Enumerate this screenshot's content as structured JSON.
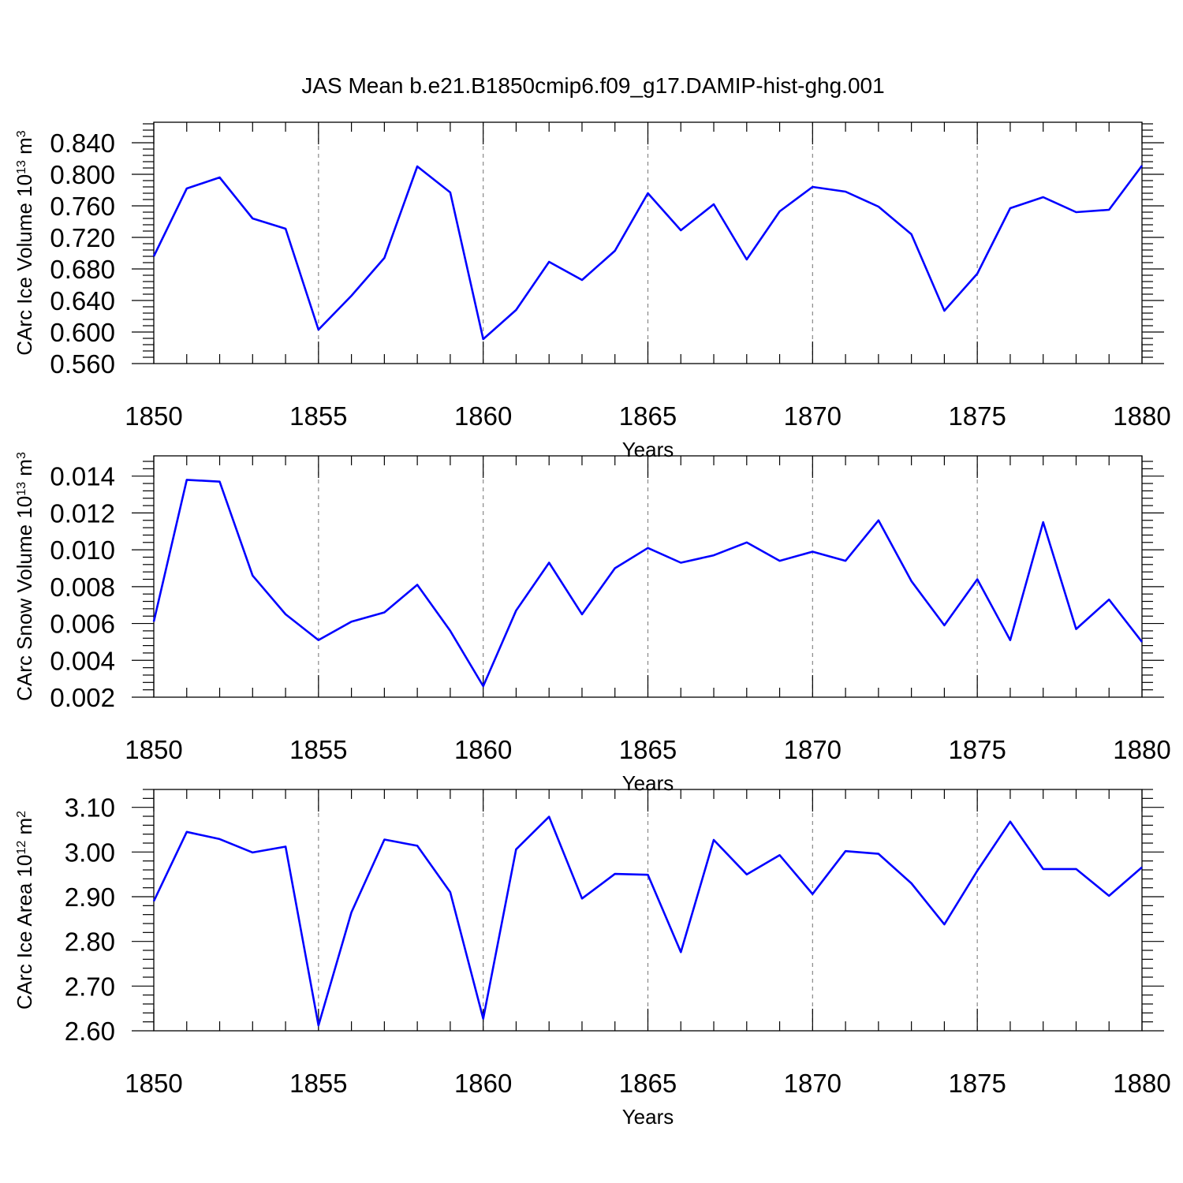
{
  "title": "JAS Mean b.e21.B1850cmip6.f09_g17.DAMIP-hist-ghg.001",
  "colors": {
    "line": "#0000ff",
    "grid": "#888888",
    "axis": "#000000"
  },
  "chart_data": [
    {
      "type": "line",
      "xlabel": "Years",
      "ylabel": "CArc Ice Volume 10",
      "ylabel_exp": "13",
      "ylabel_unit": " m",
      "ylabel_unit_exp": "3",
      "xlim": [
        1850,
        1880
      ],
      "ylim": [
        0.56,
        0.866
      ],
      "xticks": [
        "1850",
        "1855",
        "1860",
        "1865",
        "1870",
        "1875",
        "1880"
      ],
      "yticks": [
        "0.560",
        "0.600",
        "0.640",
        "0.680",
        "0.720",
        "0.760",
        "0.800",
        "0.840"
      ],
      "ytick_values": [
        0.56,
        0.6,
        0.64,
        0.68,
        0.72,
        0.76,
        0.8,
        0.84
      ],
      "grid_x": [
        1855,
        1860,
        1865,
        1870,
        1875
      ],
      "x": [
        1850,
        1851,
        1852,
        1853,
        1854,
        1855,
        1856,
        1857,
        1858,
        1859,
        1860,
        1861,
        1862,
        1863,
        1864,
        1865,
        1866,
        1867,
        1868,
        1869,
        1870,
        1871,
        1872,
        1873,
        1874,
        1875,
        1876,
        1877,
        1878,
        1879,
        1880
      ],
      "values": [
        0.696,
        0.782,
        0.796,
        0.744,
        0.731,
        0.603,
        0.646,
        0.694,
        0.81,
        0.777,
        0.591,
        0.628,
        0.689,
        0.666,
        0.703,
        0.776,
        0.729,
        0.762,
        0.692,
        0.753,
        0.784,
        0.778,
        0.759,
        0.724,
        0.627,
        0.674,
        0.757,
        0.771,
        0.752,
        0.755,
        0.811
      ]
    },
    {
      "type": "line",
      "xlabel": "Years",
      "ylabel": "CArc Snow Volume 10",
      "ylabel_exp": "13",
      "ylabel_unit": " m",
      "ylabel_unit_exp": "3",
      "xlim": [
        1850,
        1880
      ],
      "ylim": [
        0.002,
        0.0151
      ],
      "xticks": [
        "1850",
        "1855",
        "1860",
        "1865",
        "1870",
        "1875",
        "1880"
      ],
      "yticks": [
        "0.002",
        "0.004",
        "0.006",
        "0.008",
        "0.010",
        "0.012",
        "0.014"
      ],
      "ytick_values": [
        0.002,
        0.004,
        0.006,
        0.008,
        0.01,
        0.012,
        0.014
      ],
      "grid_x": [
        1855,
        1860,
        1865,
        1870,
        1875
      ],
      "x": [
        1850,
        1851,
        1852,
        1853,
        1854,
        1855,
        1856,
        1857,
        1858,
        1859,
        1860,
        1861,
        1862,
        1863,
        1864,
        1865,
        1866,
        1867,
        1868,
        1869,
        1870,
        1871,
        1872,
        1873,
        1874,
        1875,
        1876,
        1877,
        1878,
        1879,
        1880
      ],
      "values": [
        0.0061,
        0.0138,
        0.0137,
        0.0086,
        0.0065,
        0.0051,
        0.0061,
        0.0066,
        0.0081,
        0.0056,
        0.0026,
        0.0067,
        0.0093,
        0.0065,
        0.009,
        0.0101,
        0.0093,
        0.0097,
        0.0104,
        0.0094,
        0.0099,
        0.0094,
        0.0116,
        0.0083,
        0.0059,
        0.0084,
        0.0051,
        0.0115,
        0.0057,
        0.0073,
        0.005
      ]
    },
    {
      "type": "line",
      "xlabel": "Years",
      "ylabel": "CArc Ice Area 10",
      "ylabel_exp": "12",
      "ylabel_unit": " m",
      "ylabel_unit_exp": "2",
      "xlim": [
        1850,
        1880
      ],
      "ylim": [
        2.6,
        3.14
      ],
      "xticks": [
        "1850",
        "1855",
        "1860",
        "1865",
        "1870",
        "1875",
        "1880"
      ],
      "yticks": [
        "2.60",
        "2.70",
        "2.80",
        "2.90",
        "3.00",
        "3.10"
      ],
      "ytick_values": [
        2.6,
        2.7,
        2.8,
        2.9,
        3.0,
        3.1
      ],
      "grid_x": [
        1855,
        1860,
        1865,
        1870,
        1875
      ],
      "x": [
        1850,
        1851,
        1852,
        1853,
        1854,
        1855,
        1856,
        1857,
        1858,
        1859,
        1860,
        1861,
        1862,
        1863,
        1864,
        1865,
        1866,
        1867,
        1868,
        1869,
        1870,
        1871,
        1872,
        1873,
        1874,
        1875,
        1876,
        1877,
        1878,
        1879,
        1880
      ],
      "values": [
        2.89,
        3.045,
        3.029,
        2.999,
        3.012,
        2.612,
        2.865,
        3.028,
        3.014,
        2.91,
        2.627,
        3.006,
        3.079,
        2.896,
        2.951,
        2.949,
        2.776,
        3.027,
        2.95,
        2.993,
        2.906,
        3.002,
        2.996,
        2.93,
        2.838,
        2.958,
        3.068,
        2.962,
        2.962,
        2.902,
        2.966
      ]
    }
  ]
}
